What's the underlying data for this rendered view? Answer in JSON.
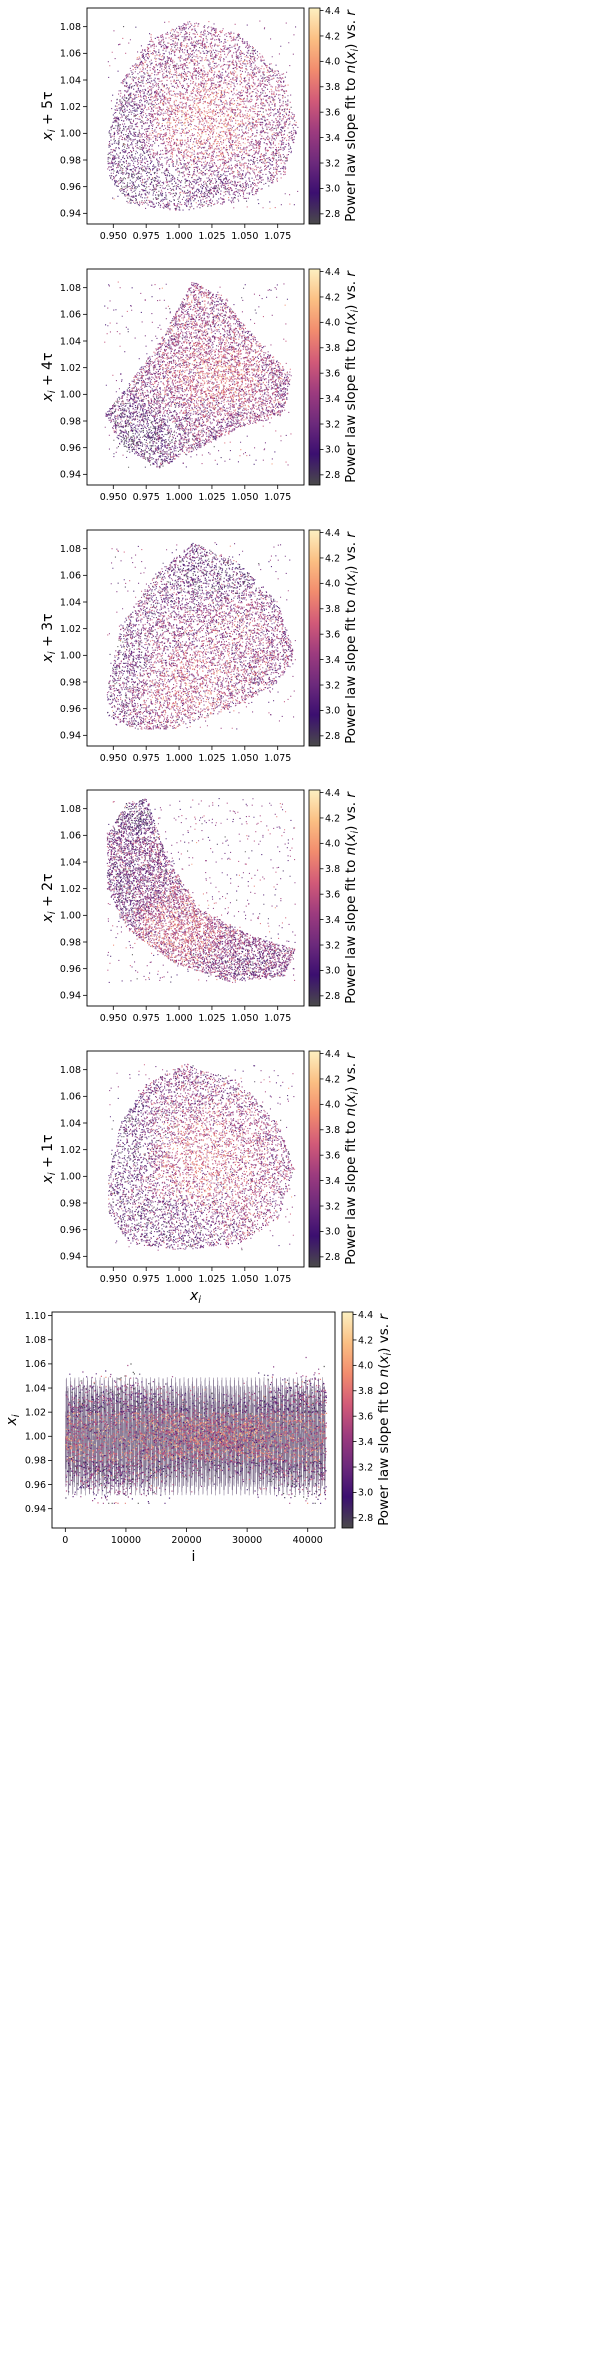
{
  "colorbar": {
    "label": "Power law slope fit to n(x_i) vs. r",
    "label_parts": [
      "Power law slope fit to ",
      "n",
      "(",
      "x",
      "i",
      ")",
      " vs. ",
      "r"
    ],
    "range": [
      2.72,
      4.42
    ],
    "ticks": [
      "2.8",
      "3.0",
      "3.2",
      "3.4",
      "3.6",
      "3.8",
      "4.0",
      "4.2",
      "4.4"
    ],
    "colormap": "magma",
    "colors": [
      "#4a4a4a",
      "#3b0f70",
      "#6d2a7c",
      "#9d3b7e",
      "#d25a78",
      "#f28c6e",
      "#fbbf83",
      "#fcf0c1"
    ]
  },
  "chart_data": [
    {
      "type": "scatter",
      "ylabel_base": "x",
      "ylabel_sub": "i",
      "ylabel_suffix": " + 5τ",
      "xlabel_base": "",
      "xlabel_sub": "",
      "xlim": [
        0.93,
        1.095
      ],
      "ylim": [
        0.932,
        1.094
      ],
      "xticks": [
        "0.950",
        "0.975",
        "1.000",
        "1.025",
        "1.050",
        "1.075"
      ],
      "yticks": [
        "0.94",
        "0.96",
        "0.98",
        "1.00",
        "1.02",
        "1.04",
        "1.06",
        "1.08"
      ],
      "cloud": {
        "outline": [
          [
            0.946,
            1.0
          ],
          [
            0.955,
            1.038
          ],
          [
            0.975,
            1.068
          ],
          [
            1.005,
            1.085
          ],
          [
            1.045,
            1.075
          ],
          [
            1.078,
            1.045
          ],
          [
            1.09,
            1.005
          ],
          [
            1.08,
            0.968
          ],
          [
            1.05,
            0.95
          ],
          [
            1.0,
            0.942
          ],
          [
            0.96,
            0.948
          ],
          [
            0.945,
            0.97
          ]
        ],
        "regions": [
          {
            "center": [
              0.985,
              0.96
            ],
            "radius": [
              0.04,
              0.016
            ],
            "slope": 2.95
          },
          {
            "center": [
              0.958,
              0.995
            ],
            "radius": [
              0.014,
              0.035
            ],
            "slope": 3.0
          },
          {
            "center": [
              1.02,
              1.01
            ],
            "radius": [
              0.03,
              0.03
            ],
            "slope": 3.85
          },
          {
            "center": [
              1.0,
              1.06
            ],
            "radius": [
              0.045,
              0.02
            ],
            "slope": 3.4
          }
        ]
      }
    },
    {
      "type": "scatter",
      "ylabel_base": "x",
      "ylabel_sub": "i",
      "ylabel_suffix": " + 4τ",
      "xlabel_base": "",
      "xlabel_sub": "",
      "xlim": [
        0.93,
        1.095
      ],
      "ylim": [
        0.932,
        1.094
      ],
      "xticks": [
        "0.950",
        "0.975",
        "1.000",
        "1.025",
        "1.050",
        "1.075"
      ],
      "yticks": [
        "0.94",
        "0.96",
        "0.98",
        "1.00",
        "1.02",
        "1.04",
        "1.06",
        "1.08"
      ],
      "cloud": {
        "outline": [
          [
            0.943,
            0.985
          ],
          [
            0.955,
            1.0
          ],
          [
            0.985,
            1.04
          ],
          [
            1.01,
            1.085
          ],
          [
            1.03,
            1.075
          ],
          [
            1.06,
            1.04
          ],
          [
            1.085,
            1.015
          ],
          [
            1.08,
            0.985
          ],
          [
            1.045,
            0.975
          ],
          [
            1.005,
            0.955
          ],
          [
            0.985,
            0.945
          ],
          [
            0.955,
            0.962
          ]
        ],
        "regions": [
          {
            "center": [
              0.97,
              0.965
            ],
            "radius": [
              0.02,
              0.015
            ],
            "slope": 2.85
          },
          {
            "center": [
              0.955,
              0.985
            ],
            "radius": [
              0.012,
              0.012
            ],
            "slope": 3.0
          },
          {
            "center": [
              1.03,
              1.015
            ],
            "radius": [
              0.03,
              0.02
            ],
            "slope": 3.8
          },
          {
            "center": [
              1.01,
              1.06
            ],
            "radius": [
              0.015,
              0.02
            ],
            "slope": 3.5
          }
        ]
      }
    },
    {
      "type": "scatter",
      "ylabel_base": "x",
      "ylabel_sub": "i",
      "ylabel_suffix": " + 3τ",
      "xlabel_base": "",
      "xlabel_sub": "",
      "xlim": [
        0.93,
        1.095
      ],
      "ylim": [
        0.932,
        1.094
      ],
      "xticks": [
        "0.950",
        "0.975",
        "1.000",
        "1.025",
        "1.050",
        "1.075"
      ],
      "yticks": [
        "0.94",
        "0.96",
        "0.98",
        "1.00",
        "1.02",
        "1.04",
        "1.06",
        "1.08"
      ],
      "cloud": {
        "outline": [
          [
            0.945,
            0.975
          ],
          [
            0.955,
            1.02
          ],
          [
            0.98,
            1.06
          ],
          [
            1.01,
            1.085
          ],
          [
            1.045,
            1.07
          ],
          [
            1.075,
            1.04
          ],
          [
            1.088,
            1.0
          ],
          [
            1.075,
            0.98
          ],
          [
            1.04,
            0.96
          ],
          [
            0.995,
            0.945
          ],
          [
            0.965,
            0.945
          ],
          [
            0.945,
            0.955
          ]
        ],
        "regions": [
          {
            "center": [
              1.03,
              1.06
            ],
            "radius": [
              0.04,
              0.015
            ],
            "slope": 2.95
          },
          {
            "center": [
              0.96,
              0.985
            ],
            "radius": [
              0.015,
              0.03
            ],
            "slope": 3.0
          },
          {
            "center": [
              1.0,
              0.975
            ],
            "radius": [
              0.035,
              0.02
            ],
            "slope": 3.7
          },
          {
            "center": [
              1.04,
              1.01
            ],
            "radius": [
              0.025,
              0.025
            ],
            "slope": 3.5
          }
        ]
      }
    },
    {
      "type": "scatter",
      "ylabel_base": "x",
      "ylabel_sub": "i",
      "ylabel_suffix": " + 2τ",
      "xlabel_base": "",
      "xlabel_sub": "",
      "xlim": [
        0.93,
        1.095
      ],
      "ylim": [
        0.932,
        1.094
      ],
      "xticks": [
        "0.950",
        "0.975",
        "1.000",
        "1.025",
        "1.050",
        "1.075"
      ],
      "yticks": [
        "0.94",
        "0.96",
        "0.98",
        "1.00",
        "1.02",
        "1.04",
        "1.06",
        "1.08"
      ],
      "cloud": {
        "outline": [
          [
            0.945,
            1.06
          ],
          [
            0.96,
            1.085
          ],
          [
            0.975,
            1.088
          ],
          [
            0.99,
            1.045
          ],
          [
            1.015,
            1.005
          ],
          [
            1.055,
            0.985
          ],
          [
            1.088,
            0.975
          ],
          [
            1.08,
            0.955
          ],
          [
            1.04,
            0.95
          ],
          [
            0.995,
            0.965
          ],
          [
            0.96,
            0.99
          ],
          [
            0.945,
            1.02
          ]
        ],
        "regions": [
          {
            "center": [
              0.968,
              1.075
            ],
            "radius": [
              0.012,
              0.012
            ],
            "slope": 2.85
          },
          {
            "center": [
              0.955,
              1.02
            ],
            "radius": [
              0.012,
              0.025
            ],
            "slope": 3.1
          },
          {
            "center": [
              1.0,
              0.99
            ],
            "radius": [
              0.025,
              0.02
            ],
            "slope": 3.75
          },
          {
            "center": [
              1.06,
              0.965
            ],
            "radius": [
              0.025,
              0.01
            ],
            "slope": 3.2
          }
        ]
      }
    },
    {
      "type": "scatter",
      "ylabel_base": "x",
      "ylabel_sub": "i",
      "ylabel_suffix": " + 1τ",
      "xlabel_base": "x",
      "xlabel_sub": "i",
      "xlim": [
        0.93,
        1.095
      ],
      "ylim": [
        0.932,
        1.094
      ],
      "xticks": [
        "0.950",
        "0.975",
        "1.000",
        "1.025",
        "1.050",
        "1.075"
      ],
      "yticks": [
        "0.94",
        "0.96",
        "0.98",
        "1.00",
        "1.02",
        "1.04",
        "1.06",
        "1.08"
      ],
      "cloud": {
        "outline": [
          [
            0.946,
            1.0
          ],
          [
            0.955,
            1.04
          ],
          [
            0.975,
            1.07
          ],
          [
            1.005,
            1.085
          ],
          [
            1.045,
            1.072
          ],
          [
            1.075,
            1.04
          ],
          [
            1.088,
            1.005
          ],
          [
            1.075,
            0.968
          ],
          [
            1.045,
            0.95
          ],
          [
            1.0,
            0.945
          ],
          [
            0.962,
            0.95
          ],
          [
            0.946,
            0.972
          ]
        ],
        "regions": [
          {
            "center": [
              0.96,
              1.02
            ],
            "radius": [
              0.015,
              0.03
            ],
            "slope": 2.95
          },
          {
            "center": [
              0.99,
              0.965
            ],
            "radius": [
              0.035,
              0.015
            ],
            "slope": 3.05
          },
          {
            "center": [
              1.02,
              1.01
            ],
            "radius": [
              0.03,
              0.03
            ],
            "slope": 3.85
          },
          {
            "center": [
              1.05,
              1.0
            ],
            "radius": [
              0.02,
              0.03
            ],
            "slope": 3.5
          }
        ]
      }
    },
    {
      "type": "scatter",
      "series_kind": "time-series",
      "ylabel_base": "x",
      "ylabel_sub": "i",
      "ylabel_suffix": "",
      "xlabel_base": "i",
      "xlabel_sub": "",
      "xlim": [
        -2200,
        44500
      ],
      "ylim": [
        0.924,
        1.103
      ],
      "xticks": [
        "0",
        "10000",
        "20000",
        "30000",
        "40000"
      ],
      "yticks": [
        "0.94",
        "0.96",
        "0.98",
        "1.00",
        "1.02",
        "1.04",
        "1.06",
        "1.08",
        "1.10"
      ],
      "n_points": 43000,
      "envelope": {
        "upper": 1.088,
        "lower": 0.945,
        "mid": 1.0,
        "half_width": 0.035,
        "oscillations": 62
      }
    }
  ]
}
